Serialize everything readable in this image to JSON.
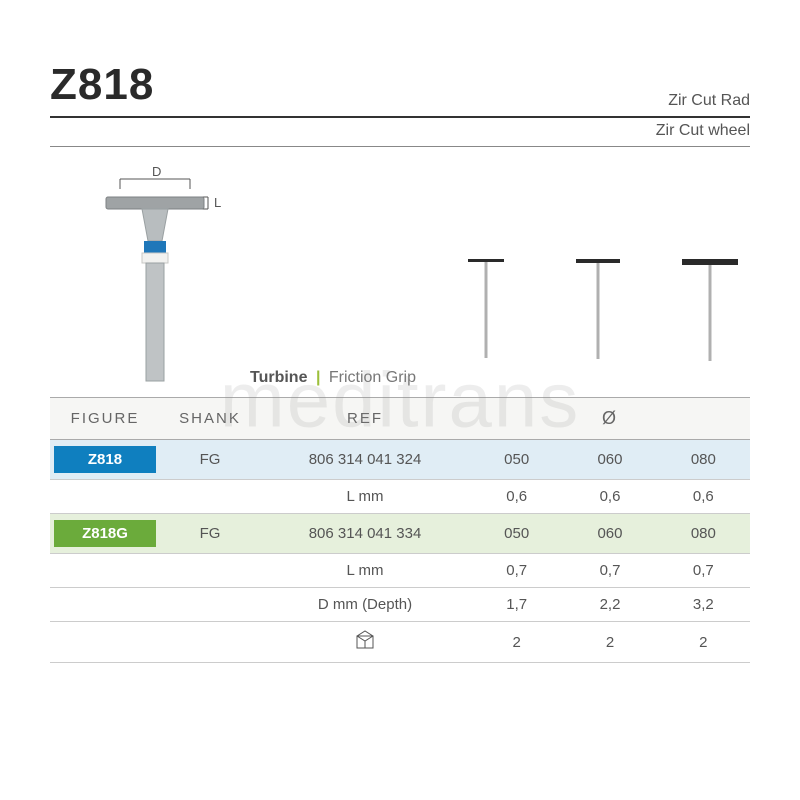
{
  "header": {
    "title": "Z818",
    "subtitle1": "Zir Cut Rad",
    "subtitle2": "Zir Cut wheel"
  },
  "diagram": {
    "d_label": "D",
    "l_label": "L",
    "shank_color": "#b8bdbf",
    "band_color": "#1f77b9",
    "head_color": "#a8aaac"
  },
  "turbine": {
    "bold": "Turbine",
    "sep": "|",
    "text": "Friction Grip"
  },
  "size_icons": {
    "stem_color": "#b0b0b0",
    "head_color": "#2a2a2a",
    "items": [
      {
        "head_w": 36,
        "head_h": 3
      },
      {
        "head_w": 44,
        "head_h": 4
      },
      {
        "head_w": 56,
        "head_h": 6
      }
    ],
    "stem_h": 96
  },
  "table": {
    "columns": {
      "figure": "FIGURE",
      "shank": "SHANK",
      "ref": "REF",
      "diameter": "Ø"
    },
    "rows": [
      {
        "style": "blue",
        "figure": "Z818",
        "figure_bg": "#0f7fbf",
        "shank": "FG",
        "ref": "806 314 041 324",
        "v1": "050",
        "v2": "060",
        "v3": "080"
      },
      {
        "style": "plain",
        "figure": "",
        "shank": "",
        "ref": "L mm",
        "v1": "0,6",
        "v2": "0,6",
        "v3": "0,6"
      },
      {
        "style": "green",
        "figure": "Z818G",
        "figure_bg": "#6bab3b",
        "shank": "FG",
        "ref": "806 314 041 334",
        "v1": "050",
        "v2": "060",
        "v3": "080"
      },
      {
        "style": "plain",
        "figure": "",
        "shank": "",
        "ref": "L mm",
        "v1": "0,7",
        "v2": "0,7",
        "v3": "0,7"
      },
      {
        "style": "plain",
        "figure": "",
        "shank": "",
        "ref": "D mm (Depth)",
        "v1": "1,7",
        "v2": "2,2",
        "v3": "3,2"
      },
      {
        "style": "plain",
        "figure": "",
        "shank": "",
        "ref": "__PACK_ICON__",
        "v1": "2",
        "v2": "2",
        "v3": "2"
      }
    ]
  },
  "watermark": "meditrans"
}
